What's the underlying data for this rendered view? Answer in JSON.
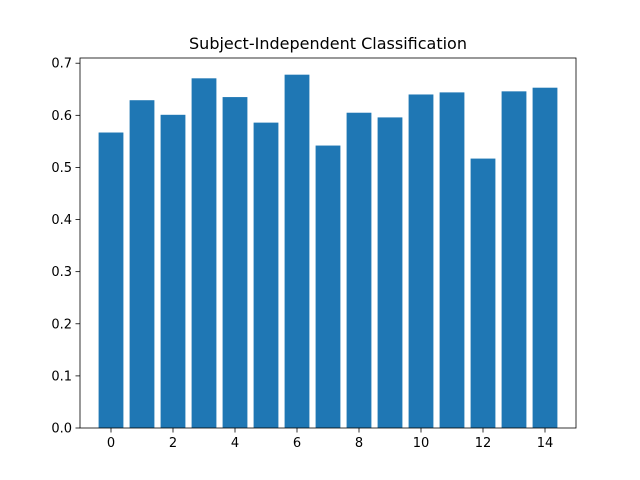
{
  "chart_data": {
    "type": "bar",
    "title": "Subject-Independent Classification",
    "xlabel": "",
    "ylabel": "",
    "categories": [
      0,
      1,
      2,
      3,
      4,
      5,
      6,
      7,
      8,
      9,
      10,
      11,
      12,
      13,
      14
    ],
    "values": [
      0.567,
      0.629,
      0.601,
      0.671,
      0.635,
      0.586,
      0.678,
      0.542,
      0.605,
      0.596,
      0.64,
      0.644,
      0.517,
      0.646,
      0.653
    ],
    "xlim": [
      -1.0,
      15.0
    ],
    "ylim": [
      0.0,
      0.71
    ],
    "xticks": [
      0,
      2,
      4,
      6,
      8,
      10,
      12,
      14
    ],
    "xtick_labels": [
      "0",
      "2",
      "4",
      "6",
      "8",
      "10",
      "12",
      "14"
    ],
    "yticks": [
      0.0,
      0.1,
      0.2,
      0.3,
      0.4,
      0.5,
      0.6,
      0.7
    ],
    "ytick_labels": [
      "0.0",
      "0.1",
      "0.2",
      "0.3",
      "0.4",
      "0.5",
      "0.6",
      "0.7"
    ],
    "bar_color": "#1f77b4",
    "grid": false,
    "legend": "none"
  }
}
